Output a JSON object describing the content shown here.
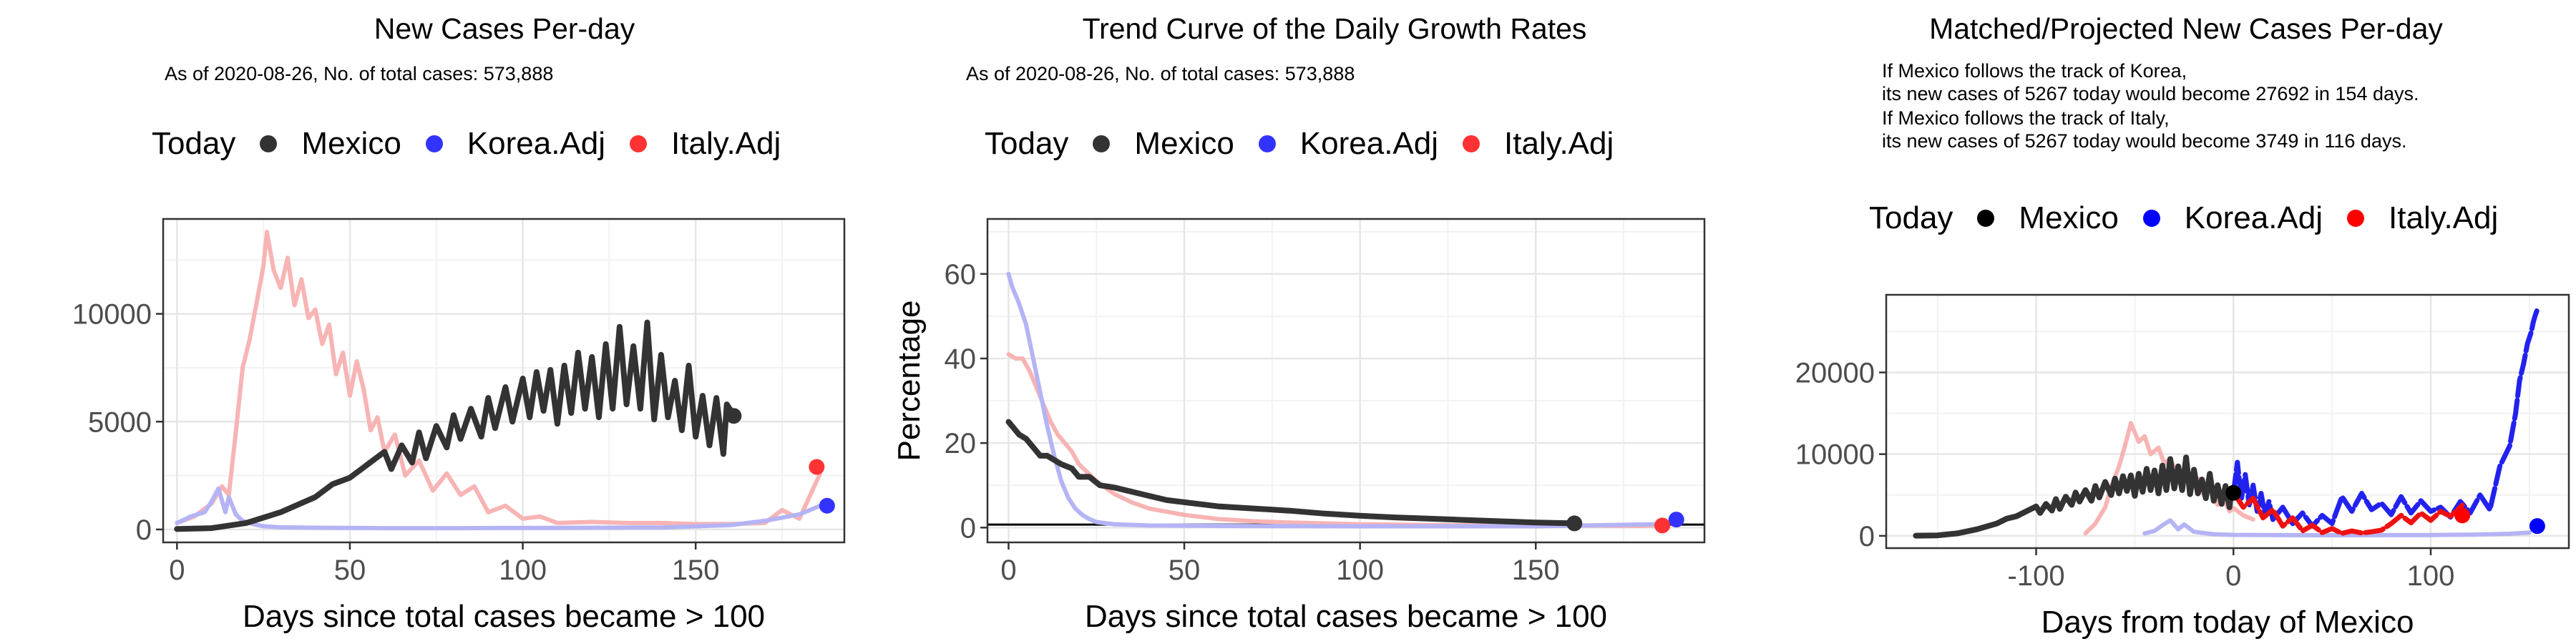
{
  "panels": [
    {
      "title": "New Cases Per-day",
      "subtitle": [
        "As of 2020-08-26, No. of total cases: 573,888"
      ],
      "legend": {
        "title": "Today",
        "items": [
          {
            "label": "Mexico",
            "color": "#333333"
          },
          {
            "label": "Korea.Adj",
            "color": "#3333ff"
          },
          {
            "label": "Italy.Adj",
            "color": "#ff3333"
          }
        ]
      }
    },
    {
      "title": "Trend Curve of the Daily Growth Rates",
      "subtitle": [
        "As of 2020-08-26, No. of total cases: 573,888"
      ],
      "legend": {
        "title": "Today",
        "items": [
          {
            "label": "Mexico",
            "color": "#333333"
          },
          {
            "label": "Korea.Adj",
            "color": "#3333ff"
          },
          {
            "label": "Italy.Adj",
            "color": "#ff3333"
          }
        ]
      }
    },
    {
      "title": "Matched/Projected New Cases Per-day",
      "subtitle": [
        "If Mexico follows the track of Korea,",
        "its new cases of 5267 today would become 27692 in 154 days.",
        "If Mexico follows the track of Italy,",
        "its new cases of 5267 today would become 3749 in 116 days."
      ],
      "legend": {
        "title": "Today",
        "items": [
          {
            "label": "Mexico",
            "color": "#000000"
          },
          {
            "label": "Korea.Adj",
            "color": "#0000ff"
          },
          {
            "label": "Italy.Adj",
            "color": "#ff0000"
          }
        ]
      }
    }
  ],
  "chart_data": [
    {
      "type": "line",
      "title": "New Cases Per-day",
      "xlabel": "Days since total cases became > 100",
      "ylabel": "",
      "xlim": [
        -4,
        193
      ],
      "ylim": [
        -600,
        14400
      ],
      "xticks": [
        0,
        50,
        100,
        150
      ],
      "yticks": [
        0,
        5000,
        10000
      ],
      "grid": true,
      "series": [
        {
          "name": "Italy.Adj",
          "color": "#f8b4b4",
          "width": 6,
          "x": [
            0,
            5,
            10,
            13,
            15,
            17,
            19,
            21,
            23,
            25,
            26,
            28,
            30,
            32,
            34,
            36,
            38,
            40,
            42,
            44,
            46,
            48,
            50,
            52,
            54,
            56,
            58,
            60,
            63,
            66,
            70,
            74,
            78,
            82,
            86,
            90,
            95,
            100,
            105,
            110,
            120,
            130,
            140,
            150,
            160,
            170,
            175,
            180,
            184,
            186
          ],
          "y": [
            300,
            600,
            1200,
            2000,
            1600,
            4500,
            7500,
            8800,
            10500,
            12200,
            13800,
            12000,
            11200,
            12600,
            10400,
            11600,
            9800,
            10200,
            8600,
            9500,
            7200,
            8200,
            6200,
            7800,
            6500,
            4600,
            5200,
            3600,
            4400,
            2500,
            3200,
            1800,
            2600,
            1600,
            2000,
            800,
            1100,
            500,
            600,
            300,
            350,
            300,
            300,
            250,
            250,
            300,
            900,
            500,
            1900,
            2600
          ]
        },
        {
          "name": "Korea.Adj",
          "color": "#b4b4f5",
          "width": 6,
          "x": [
            0,
            4,
            8,
            10,
            12,
            14,
            15,
            17,
            19,
            22,
            25,
            30,
            40,
            60,
            80,
            100,
            120,
            140,
            160,
            170,
            180,
            186
          ],
          "y": [
            300,
            600,
            800,
            1300,
            1900,
            800,
            1500,
            700,
            400,
            250,
            150,
            100,
            80,
            60,
            60,
            70,
            80,
            90,
            200,
            400,
            700,
            1100
          ]
        },
        {
          "name": "Mexico",
          "color": "#333333",
          "width": 8,
          "x": [
            0,
            10,
            20,
            30,
            40,
            45,
            50,
            55,
            60,
            62,
            65,
            68,
            70,
            72,
            75,
            78,
            80,
            82,
            85,
            88,
            90,
            92,
            95,
            97,
            100,
            102,
            104,
            106,
            108,
            110,
            112,
            114,
            116,
            118,
            120,
            122,
            124,
            126,
            128,
            130,
            132,
            134,
            136,
            138,
            140,
            142,
            144,
            146,
            148,
            150,
            152,
            154,
            156,
            158,
            159,
            161
          ],
          "y": [
            20,
            60,
            300,
            800,
            1500,
            2100,
            2400,
            3000,
            3600,
            2800,
            3900,
            3100,
            4500,
            3300,
            4800,
            3800,
            5300,
            4200,
            5600,
            4300,
            6100,
            4700,
            6600,
            5000,
            7000,
            5200,
            7300,
            5500,
            7400,
            4900,
            7600,
            5400,
            8200,
            5600,
            8000,
            5200,
            8600,
            5600,
            9400,
            5800,
            8500,
            5600,
            9600,
            5100,
            8100,
            5200,
            6900,
            4600,
            7600,
            4300,
            6200,
            3900,
            6100,
            3500,
            5800,
            5300
          ]
        }
      ],
      "today_points": [
        {
          "name": "Mexico",
          "x": 161,
          "y": 5267,
          "color": "#333333"
        },
        {
          "name": "Korea.Adj",
          "x": 188,
          "y": 1100,
          "color": "#3333ff"
        },
        {
          "name": "Italy.Adj",
          "x": 185,
          "y": 2900,
          "color": "#ff3333"
        }
      ]
    },
    {
      "type": "line",
      "title": "Trend Curve of the Daily Growth Rates",
      "xlabel": "Days since total cases became > 100",
      "ylabel": "Percentage",
      "xlim": [
        -6,
        198
      ],
      "ylim": [
        -3.5,
        73
      ],
      "xticks": [
        0,
        50,
        100,
        150
      ],
      "yticks": [
        0,
        20,
        40,
        60
      ],
      "grid": true,
      "hline": 0.7,
      "series": [
        {
          "name": "Italy.Adj",
          "color": "#f8b4b4",
          "width": 6,
          "x": [
            0,
            2,
            4,
            6,
            8,
            10,
            12,
            14,
            16,
            18,
            20,
            25,
            30,
            35,
            40,
            50,
            60,
            70,
            80,
            100,
            120,
            140,
            160,
            180,
            184
          ],
          "y": [
            41,
            40,
            40,
            37,
            33,
            29,
            25,
            22,
            20,
            18,
            15,
            11,
            8,
            6,
            4.5,
            3,
            2,
            1.5,
            1.2,
            0.8,
            0.6,
            0.5,
            0.5,
            0.4,
            0.5
          ]
        },
        {
          "name": "Korea.Adj",
          "color": "#b4b4f5",
          "width": 6,
          "x": [
            0,
            1,
            3,
            5,
            7,
            9,
            11,
            13,
            15,
            17,
            19,
            21,
            23,
            25,
            30,
            40,
            60,
            100,
            150,
            185,
            188
          ],
          "y": [
            60,
            57,
            53,
            48,
            40,
            32,
            24,
            17,
            11,
            7,
            4.5,
            3,
            2,
            1.3,
            0.8,
            0.5,
            0.4,
            0.3,
            0.3,
            0.8,
            1.2
          ]
        },
        {
          "name": "Mexico",
          "color": "#333333",
          "width": 8,
          "x": [
            0,
            3,
            5,
            7,
            9,
            11,
            13,
            15,
            18,
            20,
            23,
            26,
            30,
            35,
            40,
            45,
            50,
            60,
            70,
            80,
            90,
            100,
            110,
            120,
            130,
            140,
            150,
            161
          ],
          "y": [
            25,
            22,
            21,
            19,
            17,
            17,
            16,
            15,
            14,
            12,
            12,
            10,
            9.5,
            8.5,
            7.5,
            6.5,
            6,
            5,
            4.5,
            4,
            3.3,
            2.8,
            2.4,
            2.1,
            1.8,
            1.5,
            1.2,
            1
          ]
        }
      ],
      "today_points": [
        {
          "name": "Mexico",
          "x": 161,
          "y": 1,
          "color": "#333333"
        },
        {
          "name": "Korea.Adj",
          "x": 190,
          "y": 1.9,
          "color": "#3333ff"
        },
        {
          "name": "Italy.Adj",
          "x": 186,
          "y": 0.5,
          "color": "#ff3333"
        }
      ]
    },
    {
      "type": "line",
      "title": "Matched/Projected New Cases Per-day",
      "xlabel": "Days from today of Mexico",
      "ylabel": "",
      "xlim": [
        -176,
        170
      ],
      "ylim": [
        -1500,
        29500
      ],
      "xticks": [
        -100,
        0,
        100
      ],
      "yticks": [
        0,
        10000,
        20000
      ],
      "grid": true,
      "series": [
        {
          "name": "Italy.Adj",
          "color": "#f8b4b4",
          "width": 6,
          "x": [
            -75,
            -70,
            -65,
            -62,
            -58,
            -55,
            -52,
            -48,
            -45,
            -42,
            -38,
            -35,
            -32,
            -28,
            -25,
            -22,
            -18,
            -15,
            -12,
            -8,
            -5,
            -2,
            0,
            5,
            10
          ],
          "y": [
            300,
            1500,
            3500,
            6000,
            8500,
            11000,
            13800,
            11500,
            12200,
            10000,
            10800,
            8800,
            9500,
            7200,
            8200,
            6000,
            7000,
            5000,
            5800,
            3800,
            4500,
            3000,
            3400,
            2500,
            2000
          ]
        },
        {
          "name": "Korea.Adj",
          "color": "#b4b4f5",
          "width": 6,
          "x": [
            -45,
            -40,
            -36,
            -32,
            -28,
            -25,
            -20,
            -10,
            0,
            20,
            40,
            60,
            80,
            100,
            120,
            140,
            150
          ],
          "y": [
            300,
            600,
            1300,
            1900,
            800,
            1400,
            500,
            200,
            120,
            100,
            80,
            80,
            90,
            100,
            150,
            250,
            400
          ]
        },
        {
          "name": "Korea.Adj projected",
          "color": "#2222ee",
          "width": 7,
          "dashed": true,
          "x": [
            0,
            2,
            4,
            6,
            8,
            10,
            12,
            14,
            16,
            18,
            20,
            25,
            30,
            35,
            40,
            45,
            50,
            55,
            60,
            65,
            70,
            75,
            80,
            85,
            90,
            95,
            100,
            105,
            110,
            115,
            120,
            125,
            130,
            135,
            140,
            143,
            145,
            147,
            149,
            151,
            152,
            153,
            154
          ],
          "y": [
            5267,
            9000,
            4500,
            7500,
            3800,
            6200,
            3000,
            5200,
            2500,
            4200,
            2000,
            3500,
            1500,
            2800,
            1200,
            2500,
            1500,
            4800,
            3000,
            5200,
            3200,
            4000,
            2600,
            4800,
            2800,
            4300,
            3000,
            3500,
            2300,
            4200,
            2800,
            5000,
            3200,
            8500,
            11000,
            15000,
            19000,
            21000,
            23500,
            25000,
            26200,
            27000,
            27692
          ]
        },
        {
          "name": "Italy.Adj projected",
          "color": "#ee1111",
          "width": 7,
          "dashed": true,
          "x": [
            0,
            5,
            10,
            15,
            20,
            25,
            30,
            35,
            40,
            45,
            50,
            55,
            60,
            65,
            70,
            75,
            80,
            85,
            90,
            95,
            100,
            105,
            110,
            116
          ],
          "y": [
            5267,
            3500,
            4600,
            2200,
            3200,
            1200,
            2200,
            600,
            1300,
            400,
            900,
            300,
            600,
            350,
            500,
            700,
            1500,
            2500,
            1600,
            2800,
            1900,
            3000,
            2400,
            3749
          ]
        },
        {
          "name": "Mexico",
          "color": "#333333",
          "width": 8,
          "x": [
            -161,
            -150,
            -140,
            -130,
            -120,
            -115,
            -110,
            -105,
            -100,
            -98,
            -95,
            -92,
            -90,
            -88,
            -85,
            -82,
            -80,
            -78,
            -75,
            -72,
            -70,
            -68,
            -65,
            -62,
            -60,
            -58,
            -56,
            -54,
            -52,
            -50,
            -48,
            -46,
            -44,
            -42,
            -40,
            -38,
            -36,
            -34,
            -32,
            -30,
            -28,
            -26,
            -24,
            -22,
            -20,
            -18,
            -16,
            -14,
            -12,
            -10,
            -8,
            -6,
            -4,
            -2,
            -1,
            0
          ],
          "y": [
            20,
            60,
            300,
            800,
            1500,
            2100,
            2400,
            3000,
            3600,
            2800,
            3900,
            3100,
            4500,
            3300,
            4800,
            3800,
            5300,
            4200,
            5600,
            4300,
            6100,
            4700,
            6600,
            5000,
            7000,
            5200,
            7300,
            5500,
            7400,
            4900,
            7600,
            5400,
            8200,
            5600,
            8000,
            5200,
            8600,
            5600,
            9400,
            5800,
            8500,
            5600,
            9600,
            5100,
            8100,
            5200,
            6900,
            4600,
            7600,
            4300,
            6200,
            3900,
            6100,
            3500,
            5800,
            5267
          ]
        }
      ],
      "today_points": [
        {
          "name": "Mexico",
          "x": 0,
          "y": 5267,
          "color": "#000000"
        },
        {
          "name": "Korea.Adj",
          "x": 154,
          "y": 1200,
          "color": "#0000ff"
        },
        {
          "name": "Italy.Adj",
          "x": 116,
          "y": 2500,
          "color": "#ff0000"
        }
      ]
    }
  ]
}
